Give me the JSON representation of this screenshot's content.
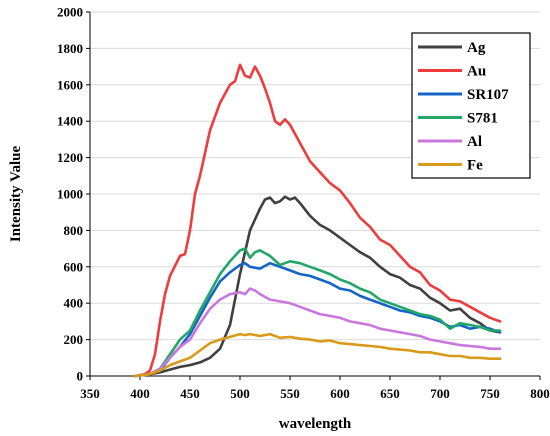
{
  "chart_data": {
    "type": "line",
    "title": "",
    "xlabel": "wavelength",
    "ylabel": "Intensity Value",
    "xlim": [
      350,
      800
    ],
    "ylim": [
      0,
      2000
    ],
    "x_ticks": [
      350,
      400,
      450,
      500,
      550,
      600,
      650,
      700,
      750,
      800
    ],
    "y_ticks": [
      0,
      200,
      400,
      600,
      800,
      1000,
      1200,
      1400,
      1600,
      1800,
      2000
    ],
    "grid": "horizontal",
    "legend_position": "top-right",
    "series": [
      {
        "name": "Ag",
        "color": "#404040",
        "x": [
          395,
          410,
          420,
          430,
          440,
          450,
          460,
          470,
          480,
          490,
          500,
          510,
          520,
          525,
          530,
          535,
          540,
          545,
          550,
          555,
          560,
          570,
          580,
          590,
          600,
          610,
          620,
          630,
          640,
          650,
          660,
          670,
          680,
          690,
          700,
          710,
          720,
          730,
          740,
          750,
          760
        ],
        "y": [
          0,
          10,
          20,
          35,
          50,
          60,
          75,
          100,
          150,
          280,
          560,
          800,
          920,
          970,
          980,
          950,
          960,
          985,
          970,
          980,
          950,
          880,
          830,
          800,
          760,
          720,
          680,
          650,
          600,
          560,
          540,
          500,
          480,
          430,
          400,
          360,
          370,
          320,
          290,
          250,
          240
        ]
      },
      {
        "name": "Au",
        "color": "#ee3b3b",
        "x": [
          395,
          405,
          410,
          415,
          420,
          425,
          430,
          440,
          445,
          450,
          455,
          460,
          470,
          480,
          490,
          495,
          500,
          505,
          510,
          515,
          520,
          525,
          530,
          535,
          540,
          545,
          550,
          560,
          570,
          580,
          590,
          600,
          610,
          620,
          630,
          640,
          650,
          660,
          670,
          680,
          690,
          700,
          710,
          720,
          730,
          740,
          750,
          760
        ],
        "y": [
          0,
          10,
          30,
          120,
          300,
          450,
          550,
          660,
          670,
          800,
          1000,
          1100,
          1350,
          1500,
          1600,
          1620,
          1710,
          1650,
          1640,
          1700,
          1650,
          1580,
          1500,
          1400,
          1380,
          1410,
          1380,
          1280,
          1180,
          1120,
          1060,
          1020,
          950,
          870,
          820,
          750,
          720,
          660,
          600,
          570,
          500,
          470,
          420,
          410,
          380,
          350,
          320,
          300
        ]
      },
      {
        "name": "SR107",
        "color": "#1464c8",
        "x": [
          395,
          410,
          420,
          430,
          440,
          450,
          460,
          470,
          480,
          490,
          500,
          505,
          510,
          520,
          530,
          540,
          550,
          560,
          570,
          580,
          590,
          600,
          610,
          620,
          630,
          640,
          650,
          660,
          670,
          680,
          690,
          700,
          710,
          720,
          730,
          740,
          750,
          760
        ],
        "y": [
          0,
          10,
          30,
          100,
          160,
          230,
          330,
          430,
          520,
          570,
          610,
          620,
          600,
          590,
          620,
          600,
          580,
          560,
          550,
          530,
          510,
          480,
          470,
          440,
          420,
          400,
          380,
          360,
          350,
          330,
          320,
          300,
          270,
          280,
          260,
          270,
          260,
          240
        ]
      },
      {
        "name": "S781",
        "color": "#22a866",
        "x": [
          395,
          410,
          420,
          430,
          440,
          450,
          460,
          470,
          480,
          490,
          500,
          505,
          510,
          515,
          520,
          530,
          540,
          550,
          560,
          570,
          580,
          590,
          600,
          610,
          620,
          630,
          640,
          650,
          660,
          670,
          680,
          690,
          700,
          710,
          720,
          730,
          740,
          750,
          760
        ],
        "y": [
          0,
          10,
          40,
          120,
          200,
          250,
          360,
          460,
          560,
          630,
          690,
          700,
          650,
          680,
          690,
          660,
          610,
          630,
          620,
          600,
          580,
          560,
          530,
          510,
          480,
          460,
          420,
          400,
          380,
          360,
          340,
          330,
          310,
          260,
          290,
          280,
          270,
          250,
          250
        ]
      },
      {
        "name": "Al",
        "color": "#c878dc",
        "x": [
          395,
          410,
          420,
          430,
          440,
          450,
          460,
          470,
          480,
          490,
          500,
          505,
          510,
          515,
          520,
          530,
          540,
          550,
          560,
          570,
          580,
          590,
          600,
          610,
          620,
          630,
          640,
          650,
          660,
          670,
          680,
          690,
          700,
          710,
          720,
          730,
          740,
          750,
          760
        ],
        "y": [
          0,
          10,
          40,
          100,
          160,
          200,
          290,
          370,
          420,
          450,
          460,
          450,
          480,
          470,
          450,
          420,
          410,
          400,
          380,
          360,
          340,
          330,
          320,
          300,
          290,
          280,
          260,
          250,
          240,
          230,
          220,
          200,
          190,
          180,
          170,
          165,
          160,
          150,
          150
        ]
      },
      {
        "name": "Fe",
        "color": "#d99a1a",
        "x": [
          395,
          410,
          420,
          430,
          440,
          450,
          460,
          470,
          480,
          490,
          500,
          505,
          510,
          520,
          530,
          540,
          550,
          560,
          570,
          580,
          590,
          600,
          610,
          620,
          630,
          640,
          650,
          660,
          670,
          680,
          690,
          700,
          710,
          720,
          730,
          740,
          750,
          760
        ],
        "y": [
          0,
          10,
          30,
          60,
          80,
          100,
          140,
          180,
          200,
          215,
          230,
          225,
          230,
          220,
          230,
          210,
          215,
          205,
          200,
          190,
          195,
          180,
          175,
          170,
          165,
          160,
          150,
          145,
          140,
          130,
          130,
          120,
          110,
          110,
          100,
          100,
          95,
          95
        ]
      }
    ]
  }
}
